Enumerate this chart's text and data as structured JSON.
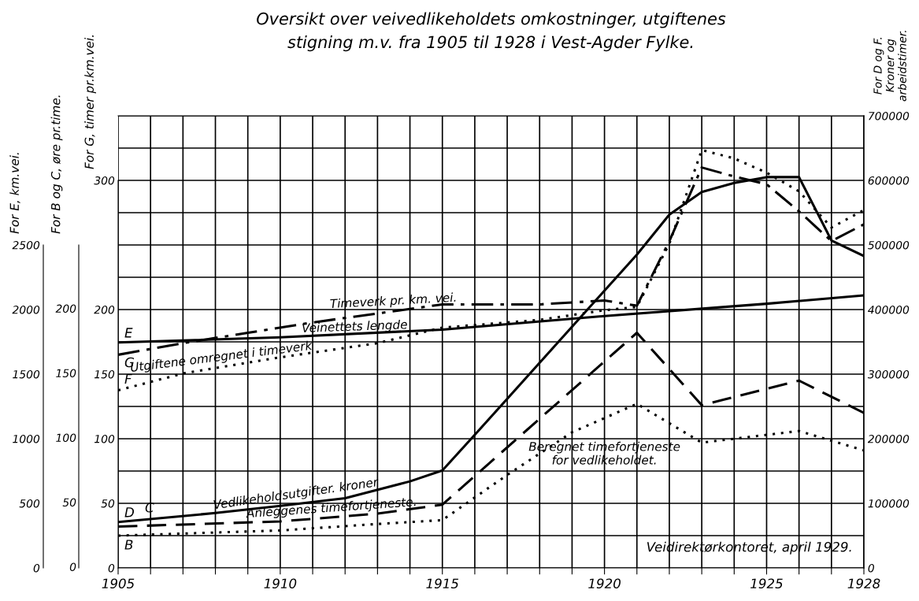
{
  "chart_data": {
    "type": "line",
    "title": "Oversikt over veivedlikeholdets omkostninger, utgiftenes\nstigning m.v. fra 1905 til 1928 i Vest-Agder Fylke.",
    "ylabel": "For E, km.vei.",
    "y3label": "For G, timer pr.km.vei.",
    "y2label": "For D og F.\nKroner og\narbeidstimer.",
    "xlim": [
      1905,
      1928
    ],
    "xticks": [
      1905,
      {
        "value": 1906,
        "label": null
      },
      {
        "value": 1907,
        "label": null
      },
      {
        "value": 1908,
        "label": null
      },
      {
        "value": 1909,
        "label": null
      },
      1910,
      {
        "value": 1911,
        "label": null
      },
      {
        "value": 1912,
        "label": null
      },
      {
        "value": 1913,
        "label": null
      },
      {
        "value": 1914,
        "label": null
      },
      1915,
      {
        "value": 1916,
        "label": null
      },
      {
        "value": 1917,
        "label": null
      },
      {
        "value": 1918,
        "label": null
      },
      {
        "value": 1919,
        "label": null
      },
      1920,
      {
        "value": 1921,
        "label": null
      },
      {
        "value": 1922,
        "label": null
      },
      {
        "value": 1923,
        "label": null
      },
      {
        "value": 1924,
        "label": null
      },
      1925,
      {
        "value": 1926,
        "label": null
      },
      {
        "value": 1927,
        "label": null
      },
      1928
    ],
    "ylim": [
      0,
      3500
    ],
    "yticks": [
      0,
      500,
      1000,
      1500,
      2000,
      2500
    ],
    "y3lim": [
      0,
      350
    ],
    "y3ticks": [
      0,
      50,
      100,
      150,
      200,
      300
    ],
    "y2lim": [
      0,
      700000
    ],
    "y2ticks": [
      0,
      {
        "value": 50000,
        "label": null
      },
      100000,
      {
        "value": 150000,
        "label": null
      },
      200000,
      {
        "value": 250000,
        "label": null
      },
      300000,
      {
        "value": 350000,
        "label": null
      },
      400000,
      {
        "value": 450000,
        "label": null
      },
      500000,
      {
        "value": 550000,
        "label": null
      },
      600000,
      {
        "value": 650000,
        "label": null
      },
      700000
    ],
    "grid": true,
    "marker": "none",
    "series": [
      {
        "name": "Veinettets lengde",
        "color": "#000000",
        "line_style": "solid",
        "x": [
          1905,
          1910,
          1915,
          1920,
          1925,
          1928
        ],
        "values": [
          1745,
          1785,
          1845,
          1950,
          2045,
          2110
        ]
      },
      {
        "name": "Timeverk pr. km. vei.",
        "color": "#000000",
        "axis": "y3",
        "line_style": "dashdot",
        "x": [
          1905,
          1907,
          1909,
          1911,
          1915,
          1918,
          1920,
          1921,
          1922,
          1923,
          1924,
          1925,
          1926,
          1927,
          1928
        ],
        "values": [
          165,
          174,
          182,
          190,
          204,
          204,
          207,
          203,
          253,
          310,
          303,
          297,
          276,
          253,
          266
        ]
      },
      {
        "name": "Utgiftene omregnet i timeverk",
        "color": "#000000",
        "axis": "y2",
        "line_style": "dotted",
        "x": [
          1905,
          1907,
          1910,
          1913,
          1915,
          1918,
          1920,
          1921,
          1922,
          1923,
          1924,
          1925,
          1926,
          1927,
          1928
        ],
        "values": [
          275000,
          301000,
          326000,
          348000,
          372000,
          384000,
          399000,
          404000,
          502000,
          647000,
          634000,
          612000,
          583000,
          527000,
          554000
        ]
      },
      {
        "name": "Vedlikeholdsutgifter. kroner",
        "color": "#000000",
        "axis": "y2",
        "line_style": "solid",
        "x": [
          1905,
          1908,
          1910,
          1912,
          1914,
          1915,
          1916,
          1921,
          1922,
          1923,
          1924,
          1925,
          1926,
          1927,
          1928
        ],
        "values": [
          71000,
          85000,
          96000,
          108000,
          134000,
          151000,
          206000,
          485000,
          547000,
          582000,
          596000,
          605000,
          605000,
          507000,
          483000
        ]
      },
      {
        "name": "Anleggenes timefortjeneste.",
        "color": "#000000",
        "axis": "y3",
        "line_style": "dashed",
        "x": [
          1905,
          1910,
          1913,
          1915,
          1921,
          1923,
          1926,
          1928
        ],
        "values": [
          32,
          36,
          42,
          49,
          182,
          126,
          145,
          120
        ]
      },
      {
        "name": "Beregnet timefortjeneste\nfor vedlikeholdet.",
        "color": "#000000",
        "axis": "y3",
        "line_style": "dotted",
        "x": [
          1905,
          1910,
          1913,
          1915,
          1917,
          1919,
          1921,
          1923,
          1924,
          1926,
          1928
        ],
        "values": [
          25,
          29,
          34,
          37,
          72,
          105,
          127,
          97,
          100,
          106,
          91
        ]
      }
    ],
    "annotations": [
      "E",
      "G",
      "F",
      "D",
      "C",
      "B",
      "Veidirektørkontoret, april 1929.",
      "For B og C, øre pr.time.",
      "0",
      "50",
      "100",
      "150",
      "200"
    ]
  }
}
